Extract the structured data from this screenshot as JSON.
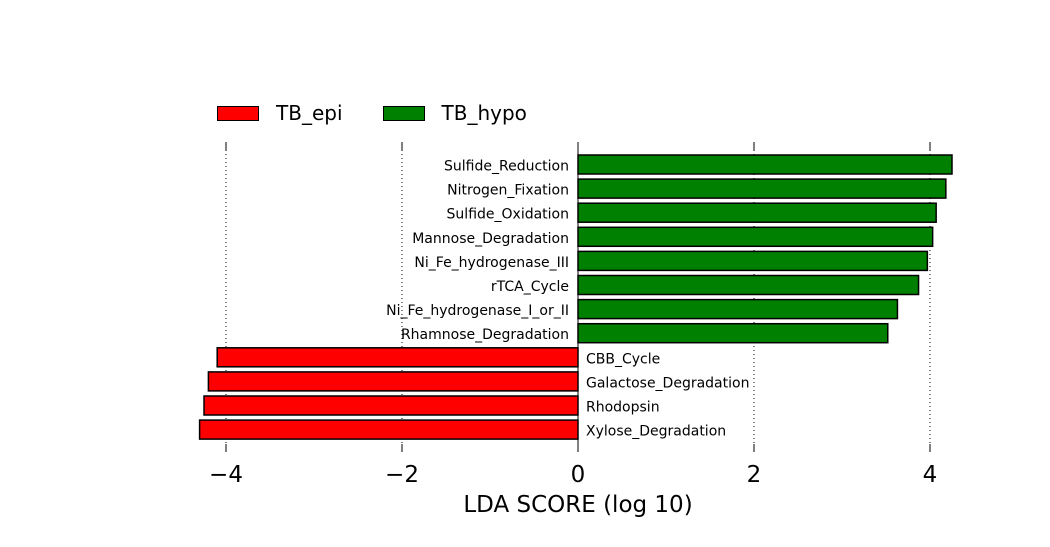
{
  "chart_data": {
    "type": "bar",
    "orientation": "horizontal",
    "xlabel": "LDA SCORE (log 10)",
    "xlim": [
      -5,
      5
    ],
    "xticks": [
      -4,
      -2,
      0,
      2,
      4
    ],
    "xtick_labels": [
      "−4",
      "−2",
      "0",
      "2",
      "4"
    ],
    "grid": "vertical-dotted",
    "legend": [
      {
        "name": "TB_epi",
        "color": "#ff0000"
      },
      {
        "name": "TB_hypo",
        "color": "#008000"
      }
    ],
    "legend_position": "top-left",
    "categories": [
      "Sulfide_Reduction",
      "Nitrogen_Fixation",
      "Sulfide_Oxidation",
      "Mannose_Degradation",
      "Ni_Fe_hydrogenase_III",
      "rTCA_Cycle",
      "Ni_Fe_hydrogenase_I_or_II",
      "Rhamnose_Degradation",
      "CBB_Cycle",
      "Galactose_Degradation",
      "Rhodopsin",
      "Xylose_Degradation"
    ],
    "values": [
      4.25,
      4.18,
      4.07,
      4.03,
      3.97,
      3.87,
      3.63,
      3.52,
      -4.1,
      -4.2,
      -4.25,
      -4.3
    ],
    "groups": [
      "TB_hypo",
      "TB_hypo",
      "TB_hypo",
      "TB_hypo",
      "TB_hypo",
      "TB_hypo",
      "TB_hypo",
      "TB_hypo",
      "TB_epi",
      "TB_epi",
      "TB_epi",
      "TB_epi"
    ]
  }
}
